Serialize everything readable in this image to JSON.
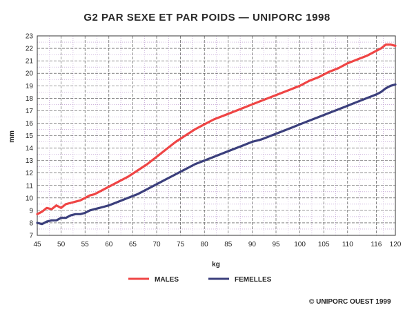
{
  "chart_data": {
    "type": "line",
    "title": "G2 PAR SEXE ET PAR POIDS — UNIPORC 1998",
    "xlabel": "kg",
    "ylabel": "mm",
    "xlim": [
      45,
      120
    ],
    "ylim": [
      7,
      23
    ],
    "x_ticks": [
      45,
      50,
      55,
      60,
      65,
      70,
      75,
      80,
      85,
      90,
      95,
      100,
      105,
      110,
      116,
      120
    ],
    "y_ticks": [
      7,
      8,
      9,
      10,
      11,
      12,
      13,
      14,
      15,
      16,
      17,
      18,
      19,
      20,
      21,
      22,
      23
    ],
    "grid": true,
    "legend_position": "bottom",
    "x": [
      45,
      46,
      47,
      48,
      49,
      50,
      51,
      52,
      53,
      54,
      55,
      56,
      57,
      58,
      59,
      60,
      62,
      64,
      66,
      68,
      70,
      72,
      74,
      76,
      78,
      80,
      82,
      84,
      86,
      88,
      90,
      92,
      94,
      96,
      98,
      100,
      102,
      104,
      106,
      108,
      110,
      112,
      114,
      116,
      117,
      118,
      119,
      120
    ],
    "series": [
      {
        "name": "MALES",
        "color": "#ef4545",
        "values": [
          8.7,
          8.9,
          9.2,
          9.1,
          9.4,
          9.2,
          9.5,
          9.6,
          9.7,
          9.8,
          10.0,
          10.2,
          10.3,
          10.5,
          10.7,
          10.9,
          11.3,
          11.7,
          12.2,
          12.7,
          13.3,
          13.9,
          14.5,
          15.0,
          15.5,
          15.9,
          16.3,
          16.6,
          16.9,
          17.2,
          17.5,
          17.8,
          18.1,
          18.4,
          18.7,
          19.0,
          19.4,
          19.7,
          20.1,
          20.4,
          20.8,
          21.1,
          21.4,
          21.8,
          22.0,
          22.3,
          22.3,
          22.2
        ]
      },
      {
        "name": "FEMELLES",
        "color": "#3b3f7c",
        "values": [
          8.0,
          7.9,
          8.1,
          8.2,
          8.2,
          8.4,
          8.4,
          8.6,
          8.7,
          8.7,
          8.8,
          9.0,
          9.1,
          9.2,
          9.3,
          9.4,
          9.7,
          10.0,
          10.3,
          10.7,
          11.1,
          11.5,
          11.9,
          12.3,
          12.7,
          13.0,
          13.3,
          13.6,
          13.9,
          14.2,
          14.5,
          14.7,
          15.0,
          15.3,
          15.6,
          15.9,
          16.2,
          16.5,
          16.8,
          17.1,
          17.4,
          17.7,
          18.0,
          18.3,
          18.5,
          18.8,
          19.0,
          19.1
        ]
      }
    ]
  },
  "legend": [
    {
      "label": "MALES",
      "color": "#ef4545"
    },
    {
      "label": "FEMELLES",
      "color": "#3b3f7c"
    }
  ],
  "credit": "© UNIPORC OUEST 1999",
  "colors": {
    "grid_major": "#3a3a3a",
    "grid_minor": "#b088c8",
    "frame": "#333333"
  }
}
